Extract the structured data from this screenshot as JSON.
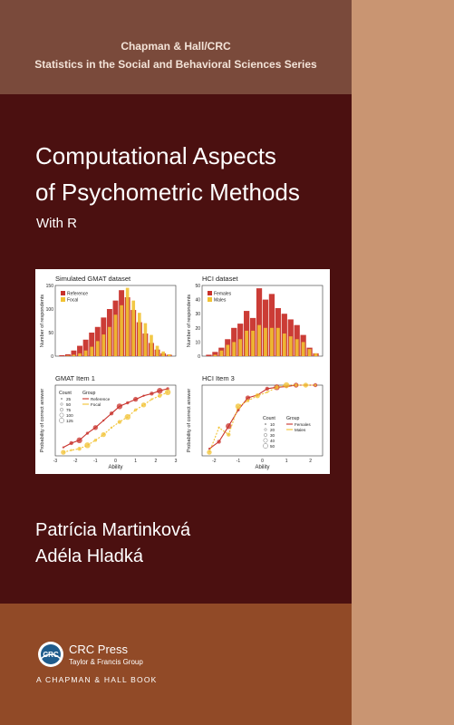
{
  "series": {
    "line1": "Chapman & Hall/CRC",
    "line2": "Statistics in the Social and Behavioral Sciences Series"
  },
  "book": {
    "title_line1": "Computational Aspects",
    "title_line2": "of Psychometric Methods",
    "subtitle": "With R"
  },
  "authors": [
    "Patrícia Martinková",
    "Adéla Hladká"
  ],
  "publisher": {
    "name": "CRC Press",
    "subname": "Taylor & Francis Group",
    "imprint": "A CHAPMAN & HALL BOOK",
    "logo_text": "CRC"
  },
  "colors": {
    "top_band": "#7a4a3b",
    "main_band": "#4b1010",
    "bottom_band": "#914a27",
    "spine": "#c99572",
    "reference_red": "#c8312b",
    "focal_yellow": "#f1c232"
  },
  "chart_data": [
    {
      "type": "bar",
      "title": "Simulated GMAT dataset",
      "ylabel": "Number of respondents",
      "xlabel": "",
      "ylim": [
        0,
        150
      ],
      "yticks": [
        "0",
        "50",
        "100",
        "150"
      ],
      "legend": [
        "Reference",
        "Focal"
      ],
      "legend_position": "top-left",
      "series": [
        {
          "name": "Reference",
          "values": [
            2,
            4,
            12,
            22,
            35,
            50,
            62,
            82,
            100,
            118,
            140,
            125,
            98,
            72,
            48,
            28,
            14,
            6,
            3
          ]
        },
        {
          "name": "Focal",
          "values": [
            0,
            1,
            3,
            6,
            12,
            20,
            32,
            46,
            62,
            88,
            108,
            145,
            118,
            92,
            70,
            45,
            22,
            10,
            4
          ]
        }
      ]
    },
    {
      "type": "bar",
      "title": "HCI dataset",
      "ylabel": "Number of respondents",
      "xlabel": "",
      "ylim": [
        0,
        50
      ],
      "yticks": [
        "0",
        "10",
        "20",
        "30",
        "40",
        "50"
      ],
      "legend": [
        "Females",
        "Males"
      ],
      "legend_position": "top-left",
      "series": [
        {
          "name": "Females",
          "values": [
            1,
            3,
            6,
            12,
            20,
            23,
            32,
            27,
            48,
            40,
            44,
            34,
            30,
            26,
            22,
            15,
            6,
            2
          ]
        },
        {
          "name": "Males",
          "values": [
            0,
            1,
            4,
            8,
            10,
            12,
            18,
            18,
            22,
            20,
            20,
            20,
            16,
            14,
            12,
            10,
            5,
            2
          ]
        }
      ]
    },
    {
      "type": "scatter",
      "title": "GMAT Item 1",
      "ylabel": "Probability of correct answer",
      "xlabel": "Ability",
      "xlim": [
        -3,
        3
      ],
      "ylim": [
        0,
        1
      ],
      "xticks": [
        "-3",
        "-2",
        "-1",
        "0",
        "1",
        "2",
        "3"
      ],
      "legend_count": {
        "title": "Count",
        "values": [
          "25",
          "50",
          "75",
          "100",
          "125"
        ]
      },
      "legend_group": {
        "title": "Group",
        "values": [
          "Reference",
          "Focal"
        ]
      },
      "legend_position": "top-left",
      "series": [
        {
          "name": "Reference",
          "x": [
            -2.6,
            -2.2,
            -1.8,
            -1.4,
            -1.0,
            -0.6,
            -0.2,
            0.2,
            0.6,
            1.0,
            1.4,
            1.8,
            2.2,
            2.6
          ],
          "y": [
            0.12,
            0.18,
            0.22,
            0.32,
            0.4,
            0.5,
            0.6,
            0.7,
            0.75,
            0.8,
            0.85,
            0.88,
            0.92,
            0.95
          ]
        },
        {
          "name": "Focal",
          "x": [
            -2.6,
            -2.2,
            -1.8,
            -1.4,
            -1.0,
            -0.6,
            -0.2,
            0.2,
            0.6,
            1.0,
            1.4,
            1.8,
            2.2,
            2.6
          ],
          "y": [
            0.05,
            0.08,
            0.1,
            0.15,
            0.22,
            0.3,
            0.4,
            0.48,
            0.55,
            0.65,
            0.72,
            0.8,
            0.85,
            0.9
          ]
        }
      ]
    },
    {
      "type": "scatter",
      "title": "HCI Item 3",
      "ylabel": "Probability of correct answer",
      "xlabel": "Ability",
      "xlim": [
        -2.5,
        2.5
      ],
      "ylim": [
        0,
        1
      ],
      "xticks": [
        "-2",
        "-1",
        "0",
        "1",
        "2"
      ],
      "legend_count": {
        "title": "Count",
        "values": [
          "10",
          "20",
          "30",
          "40",
          "50"
        ]
      },
      "legend_group": {
        "title": "Group",
        "values": [
          "Females",
          "Males"
        ]
      },
      "legend_position": "bottom-right",
      "series": [
        {
          "name": "Females",
          "x": [
            -2.2,
            -1.8,
            -1.4,
            -1.0,
            -0.6,
            -0.2,
            0.2,
            0.6,
            1.0,
            1.4,
            1.8,
            2.2
          ],
          "y": [
            0.1,
            0.2,
            0.42,
            0.65,
            0.82,
            0.86,
            0.95,
            0.97,
            0.98,
            1.0,
            1.0,
            1.0
          ]
        },
        {
          "name": "Males",
          "x": [
            -2.2,
            -1.8,
            -1.4,
            -1.0,
            -0.6,
            -0.2,
            0.2,
            0.6,
            1.0,
            1.4,
            1.8,
            2.2
          ],
          "y": [
            0.05,
            0.4,
            0.3,
            0.7,
            0.78,
            0.85,
            0.9,
            0.97,
            1.0,
            1.0,
            1.0,
            1.0
          ]
        }
      ]
    }
  ]
}
